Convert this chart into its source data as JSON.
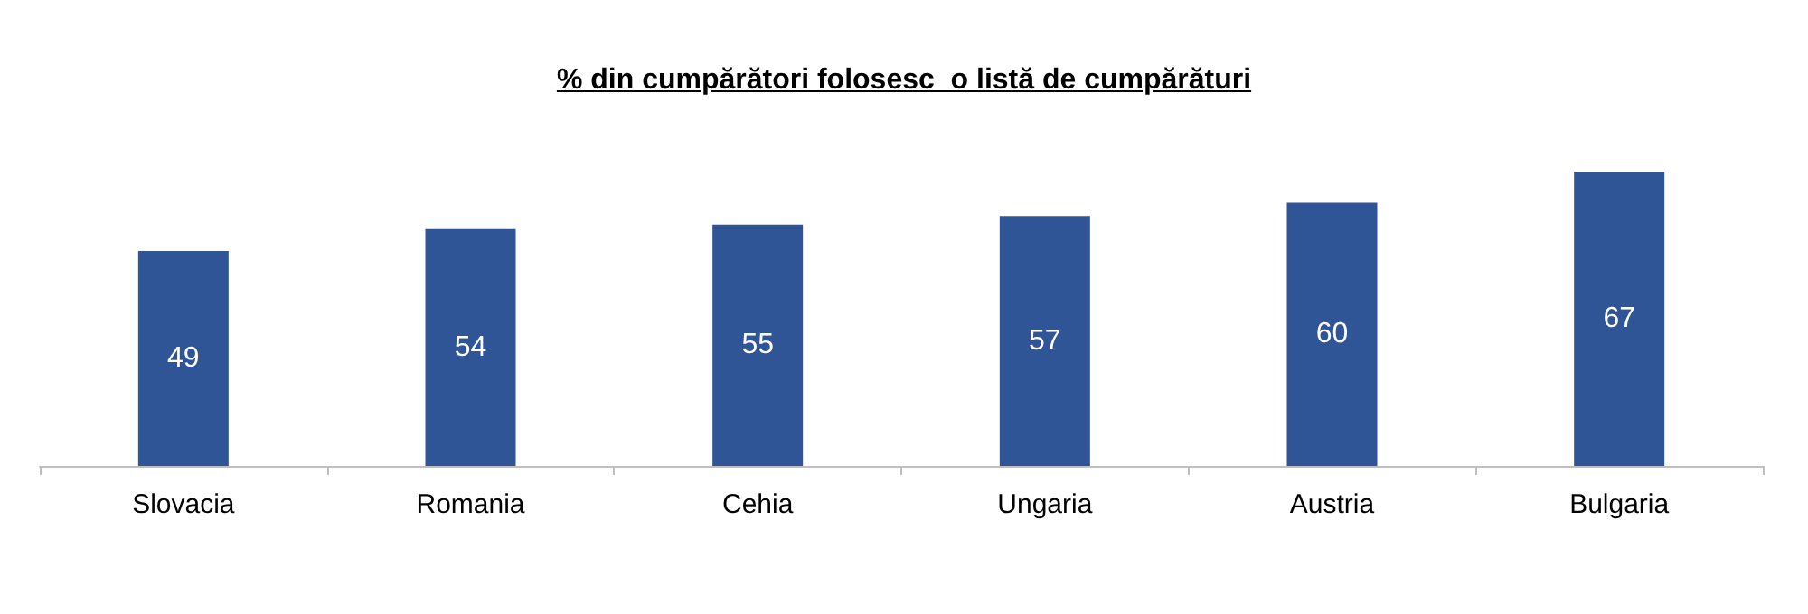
{
  "chart_data": {
    "type": "bar",
    "title": "% din cumpărători folosesc  o listă de cumpărături",
    "categories": [
      "Slovacia",
      "Romania",
      "Cehia",
      "Ungaria",
      "Austria",
      "Bulgaria"
    ],
    "values": [
      49,
      54,
      55,
      57,
      60,
      67
    ],
    "color": "#2f5597",
    "data_labels": true,
    "grid": false
  }
}
